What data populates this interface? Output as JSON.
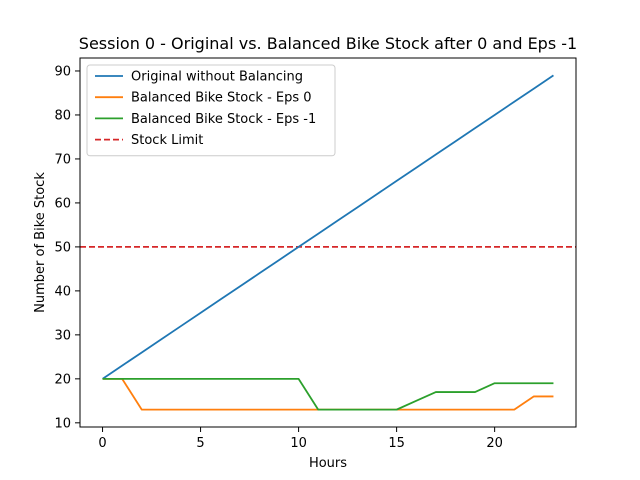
{
  "chart_data": {
    "type": "line",
    "title": "Session 0 - Original vs. Balanced Bike Stock after 0 and Eps -1",
    "xlabel": "Hours",
    "ylabel": "Number of Bike Stock",
    "xlim": [
      -1.15,
      24.15
    ],
    "ylim": [
      9.05,
      92.95
    ],
    "xticks": [
      0,
      5,
      10,
      15,
      20
    ],
    "yticks": [
      10,
      20,
      30,
      40,
      50,
      60,
      70,
      80,
      90
    ],
    "grid": false,
    "legend_position": "top-left",
    "x": [
      0,
      1,
      2,
      3,
      4,
      5,
      6,
      7,
      8,
      9,
      10,
      11,
      12,
      13,
      14,
      15,
      16,
      17,
      18,
      19,
      20,
      21,
      22,
      23
    ],
    "series": [
      {
        "name": "Original without Balancing",
        "color": "#1f77b4",
        "style": "solid",
        "values": [
          20,
          23,
          26,
          29,
          32,
          35,
          38,
          41,
          44,
          47,
          50,
          53,
          56,
          59,
          62,
          65,
          68,
          71,
          74,
          77,
          80,
          83,
          86,
          89
        ]
      },
      {
        "name": "Balanced Bike Stock - Eps 0",
        "color": "#ff7f0e",
        "style": "solid",
        "values": [
          20,
          20,
          13,
          13,
          13,
          13,
          13,
          13,
          13,
          13,
          13,
          13,
          13,
          13,
          13,
          13,
          13,
          13,
          13,
          13,
          13,
          13,
          16,
          16
        ]
      },
      {
        "name": "Balanced Bike Stock - Eps -1",
        "color": "#2ca02c",
        "style": "solid",
        "values": [
          20,
          20,
          20,
          20,
          20,
          20,
          20,
          20,
          20,
          20,
          20,
          13,
          13,
          13,
          13,
          13,
          15,
          17,
          17,
          17,
          19,
          19,
          19,
          19
        ]
      }
    ],
    "reference_lines": [
      {
        "name": "Stock Limit",
        "y": 50,
        "color": "#d62728",
        "style": "dashed"
      }
    ]
  }
}
